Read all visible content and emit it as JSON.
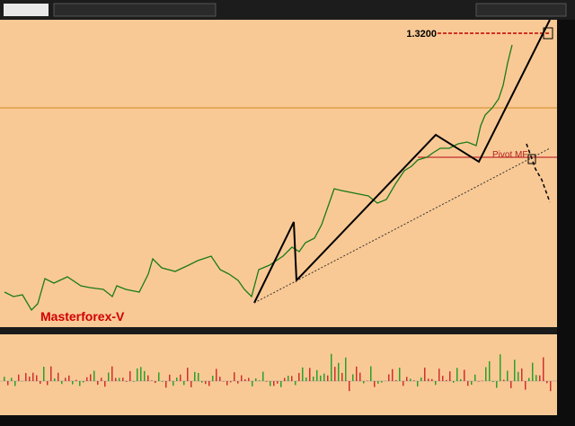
{
  "annotations": {
    "level": "1.3200",
    "pivot": "Pivot MF",
    "brand": "Masterforex-V"
  }
}
